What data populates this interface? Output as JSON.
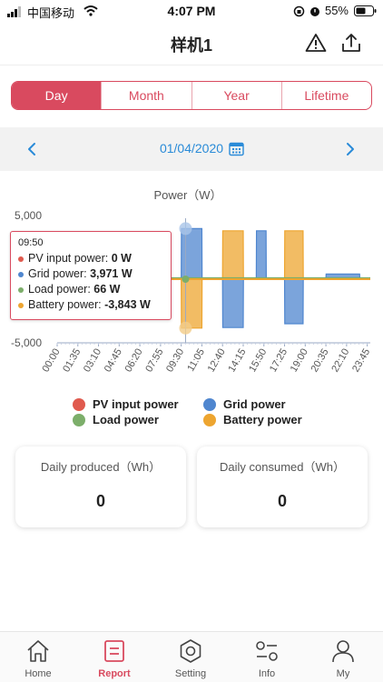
{
  "status": {
    "carrier": "中国移动",
    "time": "4:07 PM",
    "battery": "55%"
  },
  "header": {
    "title": "样机1",
    "icons": [
      "warning-icon",
      "share-icon"
    ]
  },
  "period_tabs": [
    {
      "label": "Day",
      "active": true
    },
    {
      "label": "Month",
      "active": false
    },
    {
      "label": "Year",
      "active": false
    },
    {
      "label": "Lifetime",
      "active": false
    }
  ],
  "date_picker": {
    "date": "01/04/2020"
  },
  "chart_data": {
    "type": "area",
    "title": "Power（W）",
    "ylim": [
      -5000,
      5000
    ],
    "y_ticks": [
      "5,000",
      "-5,000"
    ],
    "x_ticks": [
      "00:00",
      "01:35",
      "03:10",
      "04:45",
      "06:20",
      "07:55",
      "09:30",
      "11:05",
      "12:40",
      "14:15",
      "15:50",
      "17:25",
      "19:00",
      "20:35",
      "22:10",
      "23:45"
    ],
    "series": [
      {
        "name": "PV input power",
        "color": "#e05a4e",
        "x": [
          "00:00",
          "23:59"
        ],
        "values": [
          0,
          0
        ]
      },
      {
        "name": "Grid power",
        "color": "#4f86cf",
        "x": [
          "08:00",
          "09:30",
          "09:31",
          "11:05",
          "11:06",
          "12:40",
          "12:41",
          "14:15",
          "14:16",
          "15:15",
          "15:16",
          "16:00",
          "16:01",
          "17:25",
          "17:26",
          "18:50",
          "18:51",
          "20:35",
          "20:36",
          "23:10",
          "23:11",
          "23:59"
        ],
        "values": [
          0,
          0,
          3971,
          3971,
          0,
          0,
          -3800,
          -3800,
          0,
          0,
          3800,
          3800,
          0,
          0,
          -3500,
          -3500,
          0,
          0,
          400,
          400,
          0,
          0
        ]
      },
      {
        "name": "Load power",
        "color": "#7cae6a",
        "x": [
          "00:00",
          "23:59"
        ],
        "values": [
          66,
          66
        ]
      },
      {
        "name": "Battery power",
        "color": "#eda530",
        "x": [
          "08:00",
          "09:30",
          "09:31",
          "11:05",
          "11:06",
          "12:40",
          "12:41",
          "14:15",
          "14:16",
          "17:25",
          "17:26",
          "18:50",
          "18:51",
          "23:59"
        ],
        "values": [
          0,
          0,
          -3843,
          -3843,
          0,
          0,
          3800,
          3800,
          0,
          0,
          3800,
          3800,
          0,
          0
        ]
      }
    ],
    "tooltip": {
      "time": "09:50",
      "rows": [
        {
          "label": "PV input power: ",
          "value": "0 W",
          "color": "#e05a4e"
        },
        {
          "label": "Grid power: ",
          "value": "3,971 W",
          "color": "#4f86cf"
        },
        {
          "label": "Load power: ",
          "value": "66 W",
          "color": "#7cae6a"
        },
        {
          "label": "Battery power: ",
          "value": "-3,843 W",
          "color": "#eda530"
        }
      ]
    },
    "legend": [
      {
        "name": "PV input power",
        "color": "#e05a4e"
      },
      {
        "name": "Grid power",
        "color": "#4f86cf"
      },
      {
        "name": "Load power",
        "color": "#7cae6a"
      },
      {
        "name": "Battery power",
        "color": "#eda530"
      }
    ]
  },
  "cards": [
    {
      "title": "Daily produced（Wh）",
      "value": "0"
    },
    {
      "title": "Daily consumed（Wh）",
      "value": "0"
    }
  ],
  "tabs": [
    {
      "label": "Home",
      "icon": "home-icon",
      "active": false
    },
    {
      "label": "Report",
      "icon": "report-icon",
      "active": true
    },
    {
      "label": "Setting",
      "icon": "setting-icon",
      "active": false
    },
    {
      "label": "Info",
      "icon": "info-icon",
      "active": false
    },
    {
      "label": "My",
      "icon": "user-icon",
      "active": false
    }
  ],
  "colors": {
    "accent": "#d94a5f",
    "link": "#2a8bd8"
  }
}
